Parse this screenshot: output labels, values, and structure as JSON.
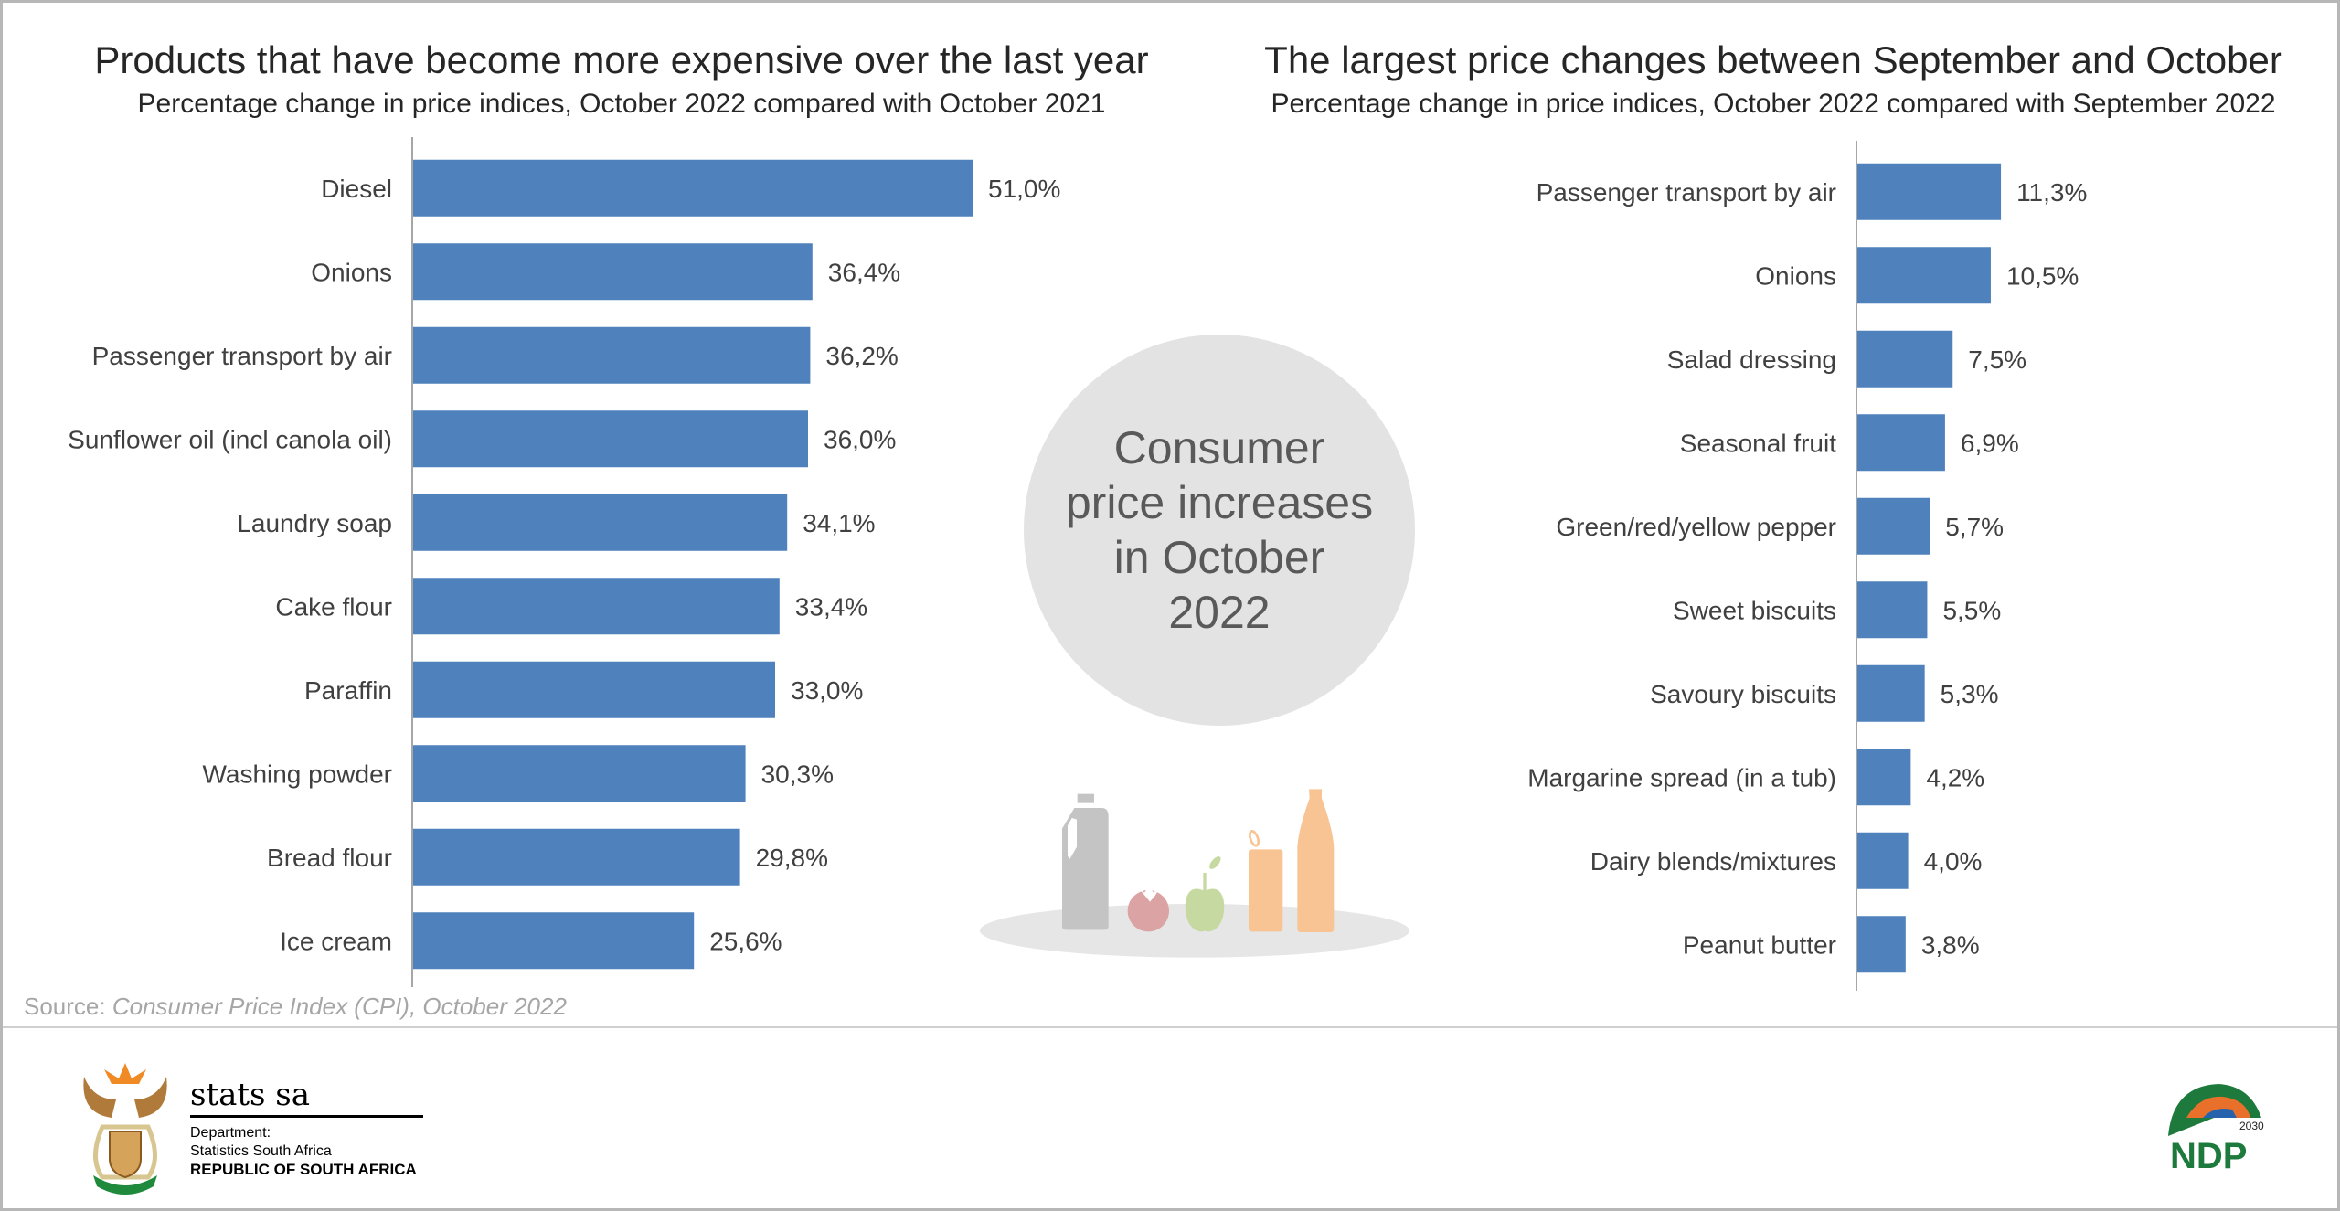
{
  "chart_data": [
    {
      "type": "bar",
      "orientation": "horizontal",
      "title": "Products that have become more expensive over the last year",
      "subtitle": "Percentage change in price indices, October 2022 compared with October 2021",
      "categories": [
        "Diesel",
        "Onions",
        "Passenger transport by air",
        "Sunflower oil (incl canola oil)",
        "Laundry soap",
        "Cake flour",
        "Paraffin",
        "Washing powder",
        "Bread flour",
        "Ice cream"
      ],
      "values": [
        51.0,
        36.4,
        36.2,
        36.0,
        34.1,
        33.4,
        33.0,
        30.3,
        29.8,
        25.6
      ],
      "data_labels": [
        "51,0%",
        "36,4%",
        "36,2%",
        "36,0%",
        "34,1%",
        "33,4%",
        "33,0%",
        "30,3%",
        "29,8%",
        "25,6%"
      ],
      "xlim": [
        0,
        55
      ],
      "grid": false,
      "bar_color": "#4f81bd"
    },
    {
      "type": "bar",
      "orientation": "horizontal",
      "title": "The largest price changes between September and October",
      "subtitle": "Percentage change in price indices, October 2022 compared with September 2022",
      "categories": [
        "Passenger transport by air",
        "Onions",
        "Salad dressing",
        "Seasonal fruit",
        "Green/red/yellow pepper",
        "Sweet biscuits",
        "Savoury biscuits",
        "Margarine spread (in a tub)",
        "Dairy blends/mixtures",
        "Peanut butter"
      ],
      "values": [
        11.3,
        10.5,
        7.5,
        6.9,
        5.7,
        5.5,
        5.3,
        4.2,
        4.0,
        3.8
      ],
      "data_labels": [
        "11,3%",
        "10,5%",
        "7,5%",
        "6,9%",
        "5,7%",
        "5,5%",
        "5,3%",
        "4,2%",
        "4,0%",
        "3,8%"
      ],
      "xlim": [
        0,
        13
      ],
      "grid": false,
      "bar_color": "#4f81bd"
    }
  ],
  "center_badge": "Consumer price increases in October 2022",
  "source": {
    "label": "Source:",
    "text": "Consumer Price Index (CPI), October 2022"
  },
  "footer": {
    "org_name": "stats sa",
    "dept_label": "Department:",
    "dept_name": "Statistics South Africa",
    "country": "REPUBLIC OF SOUTH AFRICA",
    "ndp_logo": "NDP 2030"
  }
}
